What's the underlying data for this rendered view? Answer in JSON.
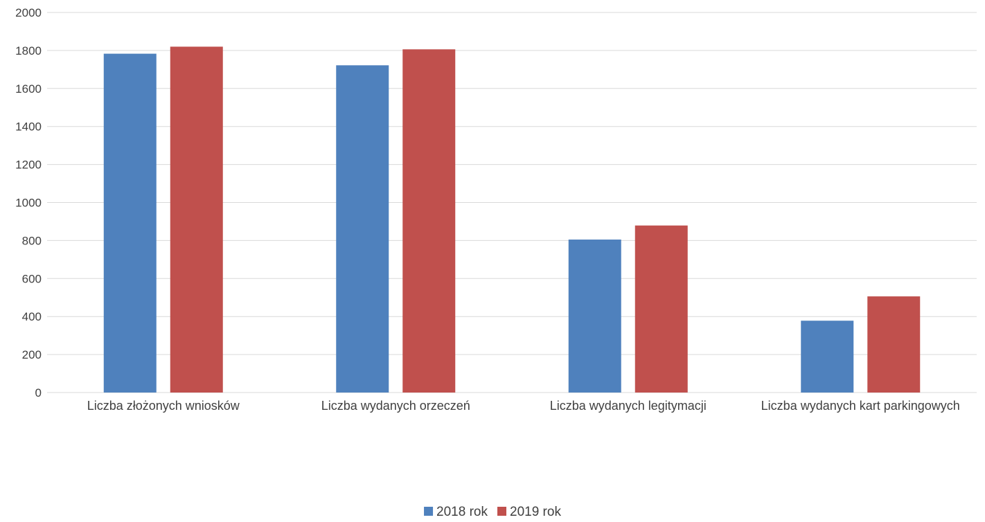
{
  "chart_data": {
    "type": "bar",
    "categories": [
      "Liczba złożonych wniosków",
      "Liczba wydanych orzeczeń",
      "Liczba wydanych legitymacji",
      "Liczba wydanych kart parkingowych"
    ],
    "series": [
      {
        "name": "2018 rok",
        "color": "#4f81bd",
        "values": [
          1783,
          1722,
          805,
          378
        ]
      },
      {
        "name": "2019 rok",
        "color": "#c0504d",
        "values": [
          1820,
          1806,
          879,
          506
        ]
      }
    ],
    "ylim": [
      0,
      2000
    ],
    "yticks": [
      "0",
      "200",
      "400",
      "600",
      "800",
      "1000",
      "1200",
      "1400",
      "1600",
      "1800",
      "2000"
    ],
    "grid": true,
    "legend_position": "bottom-center"
  }
}
